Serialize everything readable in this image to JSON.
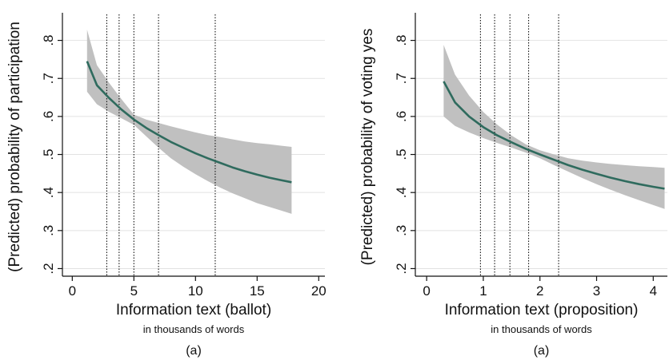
{
  "chart_data": [
    {
      "type": "line",
      "panel_label": "(a)",
      "xlabel": "Information text (ballot)",
      "xlabel_sub": "in thousands of words",
      "ylabel": "(Predicted) probability of participation",
      "xlim": [
        -0.8,
        20.5
      ],
      "ylim": [
        0.18,
        0.86
      ],
      "xticks": [
        0,
        5,
        10,
        15,
        20
      ],
      "xtick_labels": [
        "0",
        "5",
        "10",
        "15",
        "20"
      ],
      "yticks": [
        0.2,
        0.3,
        0.4,
        0.5,
        0.6,
        0.7,
        0.8
      ],
      "ytick_labels": [
        ".2",
        ".3",
        ".4",
        ".5",
        ".6",
        ".7",
        ".8"
      ],
      "grid": "horizontal",
      "colors": {
        "line": "#2f6b5e",
        "band": "#c0c0c0",
        "grid": "#e2e2e2",
        "vline": "#111111"
      },
      "vlines": [
        2.8,
        3.8,
        5.0,
        7.0,
        11.6
      ],
      "series": [
        {
          "x": [
            1.2,
            2,
            3,
            4,
            5,
            6,
            7,
            8,
            9,
            10,
            11,
            12,
            13,
            14,
            15,
            16,
            17,
            17.8
          ],
          "y": [
            0.745,
            0.682,
            0.648,
            0.618,
            0.592,
            0.57,
            0.551,
            0.533,
            0.518,
            0.503,
            0.49,
            0.478,
            0.466,
            0.456,
            0.447,
            0.439,
            0.432,
            0.427
          ],
          "lower": [
            0.665,
            0.632,
            0.612,
            0.595,
            0.578,
            0.548,
            0.518,
            0.49,
            0.468,
            0.448,
            0.43,
            0.413,
            0.398,
            0.385,
            0.372,
            0.362,
            0.352,
            0.344
          ],
          "upper": [
            0.828,
            0.735,
            0.688,
            0.645,
            0.605,
            0.592,
            0.583,
            0.574,
            0.566,
            0.558,
            0.551,
            0.546,
            0.54,
            0.534,
            0.53,
            0.527,
            0.523,
            0.52
          ]
        }
      ]
    },
    {
      "type": "line",
      "panel_label": "(a)",
      "xlabel": "Information text (proposition)",
      "xlabel_sub": "in thousands of words",
      "ylabel": "(Predicted) probability of voting yes",
      "xlim": [
        -0.2,
        4.25
      ],
      "ylim": [
        0.18,
        0.86
      ],
      "xticks": [
        0,
        1,
        2,
        3,
        4
      ],
      "xtick_labels": [
        "0",
        "1",
        "2",
        "3",
        "4"
      ],
      "yticks": [
        0.2,
        0.3,
        0.4,
        0.5,
        0.6,
        0.7,
        0.8
      ],
      "ytick_labels": [
        ".2",
        ".3",
        ".4",
        ".5",
        ".6",
        ".7",
        ".8"
      ],
      "grid": "horizontal",
      "colors": {
        "line": "#2f6b5e",
        "band": "#c0c0c0",
        "grid": "#e2e2e2",
        "vline": "#111111"
      },
      "vlines": [
        0.95,
        1.2,
        1.47,
        1.8,
        2.33
      ],
      "series": [
        {
          "x": [
            0.3,
            0.5,
            0.75,
            1.0,
            1.25,
            1.5,
            1.75,
            2.0,
            2.25,
            2.5,
            2.75,
            3.0,
            3.25,
            3.5,
            3.75,
            4.0,
            4.2
          ],
          "y": [
            0.692,
            0.637,
            0.6,
            0.572,
            0.55,
            0.532,
            0.515,
            0.5,
            0.486,
            0.472,
            0.46,
            0.449,
            0.439,
            0.43,
            0.422,
            0.415,
            0.41
          ],
          "lower": [
            0.6,
            0.575,
            0.558,
            0.543,
            0.53,
            0.518,
            0.505,
            0.49,
            0.472,
            0.455,
            0.438,
            0.422,
            0.407,
            0.393,
            0.38,
            0.367,
            0.357
          ],
          "upper": [
            0.788,
            0.71,
            0.655,
            0.612,
            0.578,
            0.55,
            0.527,
            0.511,
            0.5,
            0.49,
            0.484,
            0.479,
            0.475,
            0.472,
            0.469,
            0.467,
            0.465
          ]
        }
      ]
    }
  ]
}
